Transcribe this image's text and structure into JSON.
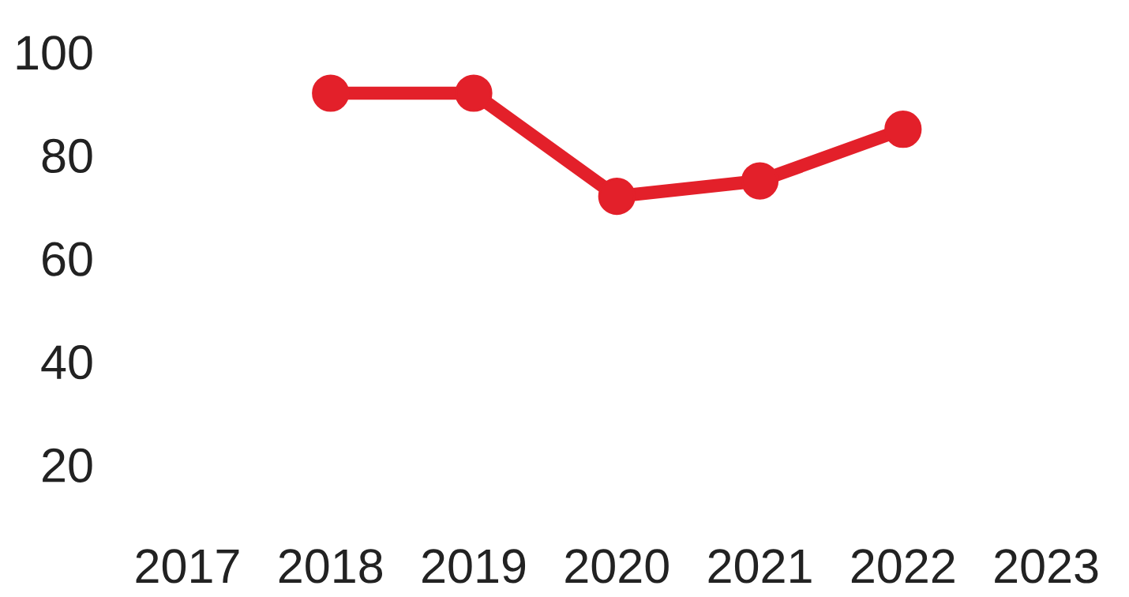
{
  "chart_data": {
    "type": "line",
    "categories": [
      "2017",
      "2018",
      "2019",
      "2020",
      "2021",
      "2022",
      "2023"
    ],
    "series": [
      {
        "color": "#e3202a",
        "values": [
          null,
          92,
          92,
          72,
          75,
          85,
          null
        ]
      }
    ],
    "ylim": [
      20,
      100
    ],
    "yticks": [
      20,
      40,
      60,
      80,
      100
    ],
    "grid": false,
    "legend": false,
    "marker": "circle",
    "line_style": "solid"
  }
}
